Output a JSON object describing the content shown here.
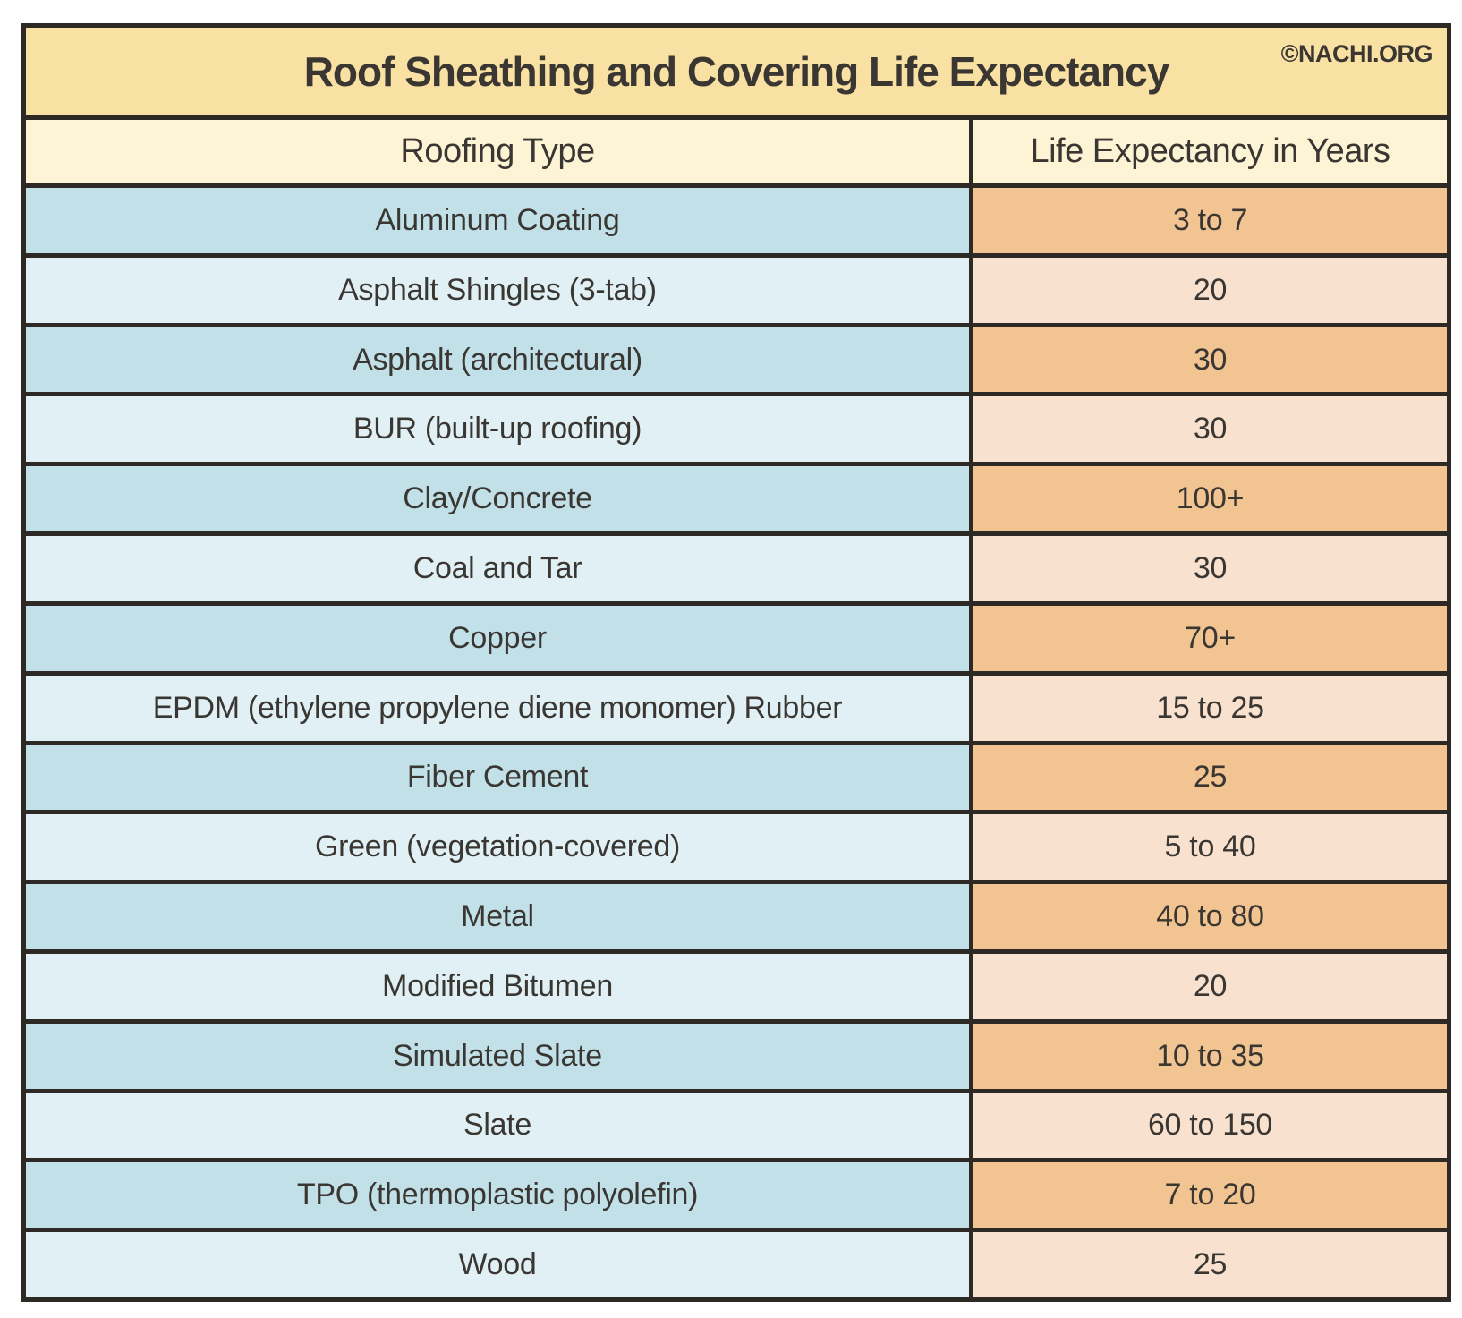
{
  "branding": {
    "copyright": "©NACHI.ORG"
  },
  "colors": {
    "gridline": "#2d2a26",
    "title_bar_bg": "#f8e1a3",
    "header_bg": "#fdf4d6",
    "row_blue_dark": "#c2e0e8",
    "row_blue_light": "#e0f0f5",
    "row_orange_dark": "#f1c491",
    "row_orange_light": "#f8e1ce",
    "text": "#3a3733"
  },
  "chart_data": {
    "type": "table",
    "title": "Roof Sheathing and Covering Life Expectancy",
    "columns": [
      "Roofing Type",
      "Life Expectancy in Years"
    ],
    "rows": [
      {
        "roofing_type": "Aluminum Coating",
        "life_expectancy_years": "3 to 7"
      },
      {
        "roofing_type": "Asphalt Shingles (3-tab)",
        "life_expectancy_years": "20"
      },
      {
        "roofing_type": "Asphalt (architectural)",
        "life_expectancy_years": "30"
      },
      {
        "roofing_type": "BUR (built-up roofing)",
        "life_expectancy_years": "30"
      },
      {
        "roofing_type": "Clay/Concrete",
        "life_expectancy_years": "100+"
      },
      {
        "roofing_type": "Coal and Tar",
        "life_expectancy_years": "30"
      },
      {
        "roofing_type": "Copper",
        "life_expectancy_years": "70+"
      },
      {
        "roofing_type": "EPDM (ethylene propylene diene monomer) Rubber",
        "life_expectancy_years": "15 to 25"
      },
      {
        "roofing_type": "Fiber Cement",
        "life_expectancy_years": "25"
      },
      {
        "roofing_type": "Green (vegetation-covered)",
        "life_expectancy_years": "5 to 40"
      },
      {
        "roofing_type": "Metal",
        "life_expectancy_years": "40 to 80"
      },
      {
        "roofing_type": "Modified Bitumen",
        "life_expectancy_years": "20"
      },
      {
        "roofing_type": "Simulated Slate",
        "life_expectancy_years": "10 to 35"
      },
      {
        "roofing_type": "Slate",
        "life_expectancy_years": "60 to 150"
      },
      {
        "roofing_type": "TPO (thermoplastic polyolefin)",
        "life_expectancy_years": "7 to 20"
      },
      {
        "roofing_type": "Wood",
        "life_expectancy_years": "25"
      }
    ]
  }
}
